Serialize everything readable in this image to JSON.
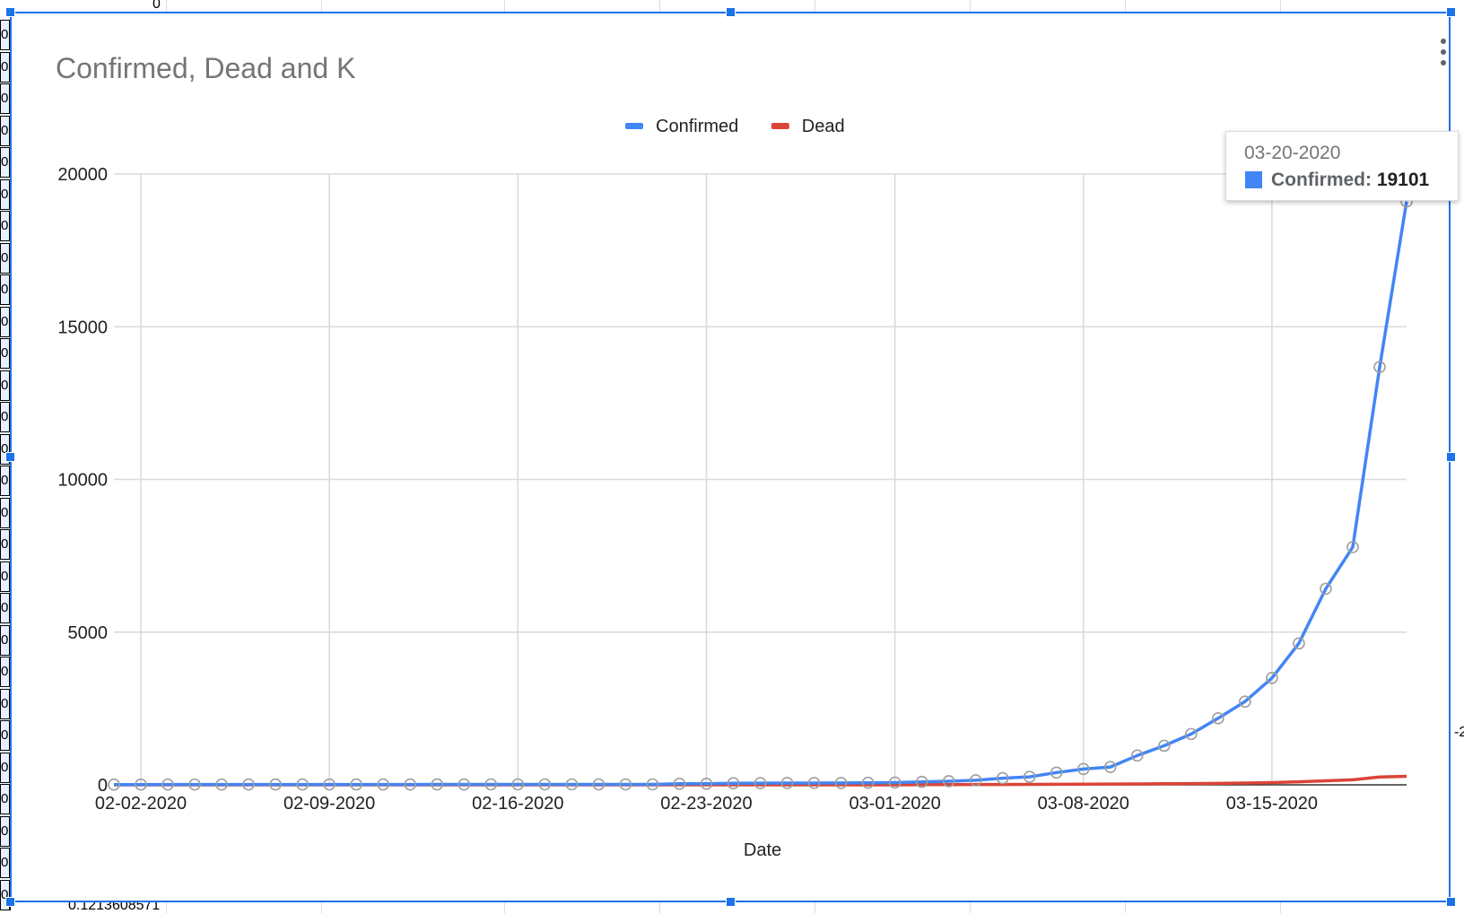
{
  "spreadsheet": {
    "row_header_fragments": [
      "0",
      "0",
      "0",
      "0",
      "0",
      "0",
      "0",
      "0",
      "0",
      "0",
      "0",
      "0",
      "0",
      "0",
      "0",
      "0",
      "0",
      "0",
      "0",
      "0",
      "0",
      "0",
      "0",
      "0",
      "0",
      "0",
      "0",
      "0"
    ],
    "top_cell_value": "0",
    "bottom_cell_value": "0.1213608571",
    "right_edge_fragment": "-2"
  },
  "chart": {
    "title": "Confirmed, Dead and K",
    "legend": [
      {
        "label": "Confirmed",
        "color": "#4285f4"
      },
      {
        "label": "Dead",
        "color": "#db4437"
      }
    ],
    "xlabel": "Date",
    "tooltip": {
      "date": "03-20-2020",
      "series": "Confirmed",
      "value": "19101",
      "color": "#4285f4"
    },
    "menu_icon": "more-vert-icon"
  },
  "chart_data": {
    "type": "line",
    "title": "Confirmed, Dead and K",
    "xlabel": "Date",
    "ylabel": "",
    "ylim": [
      0,
      20000
    ],
    "y_ticks": [
      0,
      5000,
      10000,
      15000,
      20000
    ],
    "x_tick_labels": [
      "02-02-2020",
      "02-09-2020",
      "02-16-2020",
      "02-23-2020",
      "03-01-2020",
      "03-08-2020",
      "03-15-2020"
    ],
    "grid": true,
    "legend_position": "top",
    "x": [
      "02-01-2020",
      "02-02-2020",
      "02-03-2020",
      "02-04-2020",
      "02-05-2020",
      "02-06-2020",
      "02-07-2020",
      "02-08-2020",
      "02-09-2020",
      "02-10-2020",
      "02-11-2020",
      "02-12-2020",
      "02-13-2020",
      "02-14-2020",
      "02-15-2020",
      "02-16-2020",
      "02-17-2020",
      "02-18-2020",
      "02-19-2020",
      "02-20-2020",
      "02-21-2020",
      "02-22-2020",
      "02-23-2020",
      "02-24-2020",
      "02-25-2020",
      "02-26-2020",
      "02-27-2020",
      "02-28-2020",
      "02-29-2020",
      "03-01-2020",
      "03-02-2020",
      "03-03-2020",
      "03-04-2020",
      "03-05-2020",
      "03-06-2020",
      "03-07-2020",
      "03-08-2020",
      "03-09-2020",
      "03-10-2020",
      "03-11-2020",
      "03-12-2020",
      "03-13-2020",
      "03-14-2020",
      "03-15-2020",
      "03-16-2020",
      "03-17-2020",
      "03-18-2020",
      "03-19-2020",
      "03-20-2020"
    ],
    "series": [
      {
        "name": "Confirmed",
        "color": "#4285f4",
        "values": [
          8,
          8,
          11,
          11,
          11,
          12,
          12,
          12,
          12,
          12,
          13,
          13,
          14,
          14,
          15,
          15,
          15,
          15,
          15,
          15,
          15,
          35,
          35,
          53,
          57,
          60,
          60,
          62,
          68,
          74,
          98,
          118,
          149,
          217,
          262,
          402,
          518,
          583,
          959,
          1281,
          1663,
          2179,
          2727,
          3499,
          4632,
          6421,
          7786,
          13680,
          19101
        ]
      },
      {
        "name": "Dead",
        "color": "#db4437",
        "values": [
          0,
          0,
          0,
          0,
          0,
          0,
          0,
          0,
          0,
          0,
          0,
          0,
          0,
          0,
          0,
          0,
          0,
          0,
          0,
          0,
          0,
          0,
          0,
          0,
          0,
          0,
          0,
          0,
          1,
          1,
          6,
          9,
          11,
          12,
          15,
          19,
          22,
          26,
          30,
          38,
          41,
          48,
          58,
          73,
          99,
          133,
          164,
          258,
          278
        ]
      }
    ]
  }
}
